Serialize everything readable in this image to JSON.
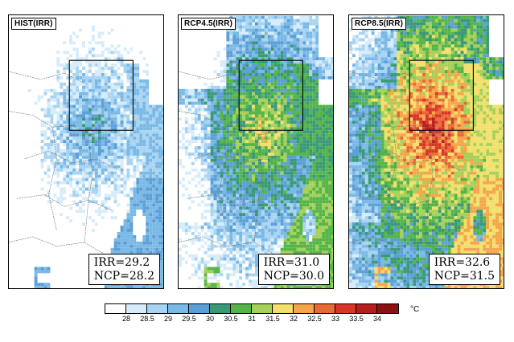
{
  "panels": [
    {
      "label": "HIST(IRR)",
      "irr": "IRR=29.2",
      "ncp": "NCP=28.2"
    },
    {
      "label": "RCP4.5(IRR)",
      "irr": "IRR=31.0",
      "ncp": "NCP=30.0"
    },
    {
      "label": "RCP8.5(IRR)",
      "irr": "IRR=32.6",
      "ncp": "NCP=31.5"
    }
  ],
  "colorbar": {
    "ticks": [
      "28",
      "28.5",
      "29",
      "29.5",
      "30",
      "30.5",
      "31",
      "31.5",
      "32",
      "32.5",
      "33",
      "33.5",
      "34"
    ],
    "unit": "°C",
    "colors": [
      "#ffffff",
      "#d6ecfb",
      "#a8d4f2",
      "#7ab9e6",
      "#5c9fd6",
      "#3a9a78",
      "#55b548",
      "#a6d05a",
      "#f2e06a",
      "#f5a64a",
      "#ea6a35",
      "#d9362a",
      "#b51e1e",
      "#8a1212"
    ]
  }
}
